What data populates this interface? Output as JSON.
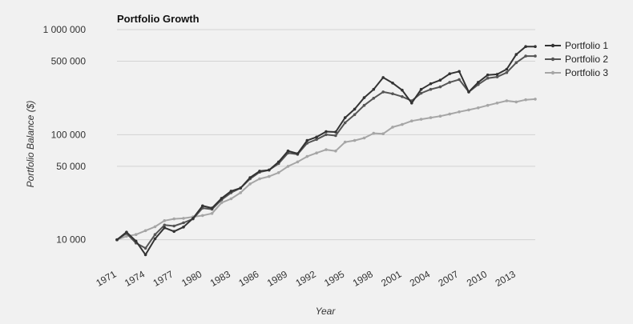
{
  "chart_data": {
    "type": "line",
    "title": "Portfolio Growth",
    "xlabel": "Year",
    "ylabel": "Portfolio Balance ($)",
    "y_scale": "log",
    "ylim": [
      7000,
      1000000
    ],
    "yticks": [
      10000,
      50000,
      100000,
      500000,
      1000000
    ],
    "ytick_labels": [
      "10 000",
      "50 000",
      "100 000",
      "500 000",
      "1 000 000"
    ],
    "xticks": [
      1971,
      1974,
      1977,
      1980,
      1983,
      1986,
      1989,
      1992,
      1995,
      1998,
      2001,
      2004,
      2007,
      2010,
      2013
    ],
    "grid": true,
    "legend_position": "right",
    "x": [
      1971,
      1972,
      1973,
      1974,
      1975,
      1976,
      1977,
      1978,
      1979,
      1980,
      1981,
      1982,
      1983,
      1984,
      1985,
      1986,
      1987,
      1988,
      1989,
      1990,
      1991,
      1992,
      1993,
      1994,
      1995,
      1996,
      1997,
      1998,
      1999,
      2000,
      2001,
      2002,
      2003,
      2004,
      2005,
      2006,
      2007,
      2008,
      2009,
      2010,
      2011,
      2012,
      2013,
      2014,
      2015
    ],
    "series": [
      {
        "name": "Portfolio 1",
        "color": "#333333",
        "values": [
          10000,
          11800,
          9700,
          7200,
          10200,
          13000,
          12000,
          13200,
          16000,
          21000,
          20000,
          24800,
          29000,
          31000,
          39000,
          45000,
          46000,
          55000,
          70000,
          66000,
          88000,
          95000,
          107000,
          106000,
          145000,
          175000,
          225000,
          270000,
          350000,
          310000,
          265000,
          200000,
          270000,
          305000,
          330000,
          380000,
          400000,
          255000,
          315000,
          370000,
          375000,
          420000,
          580000,
          690000,
          690000
        ]
      },
      {
        "name": "Portfolio 2",
        "color": "#555555",
        "values": [
          10000,
          11500,
          9300,
          8300,
          11200,
          13800,
          13500,
          14500,
          15800,
          20000,
          19500,
          24000,
          28000,
          31000,
          38000,
          44000,
          46000,
          53000,
          67000,
          65000,
          83000,
          90000,
          100000,
          98000,
          130000,
          155000,
          190000,
          222000,
          255000,
          245000,
          230000,
          210000,
          248000,
          270000,
          285000,
          315000,
          335000,
          255000,
          300000,
          345000,
          355000,
          390000,
          485000,
          560000,
          560000
        ]
      },
      {
        "name": "Portfolio 3",
        "color": "#a6a6a6",
        "values": [
          10000,
          10800,
          11200,
          12200,
          13300,
          15200,
          15800,
          16000,
          16500,
          17000,
          17800,
          22500,
          24500,
          28000,
          34000,
          38000,
          40000,
          43500,
          50000,
          55000,
          62000,
          67000,
          72000,
          70000,
          85000,
          88000,
          93000,
          103000,
          102000,
          118000,
          125000,
          135000,
          140000,
          145000,
          150000,
          157000,
          165000,
          172000,
          180000,
          190000,
          200000,
          210000,
          205000,
          215000,
          218000
        ]
      }
    ]
  }
}
